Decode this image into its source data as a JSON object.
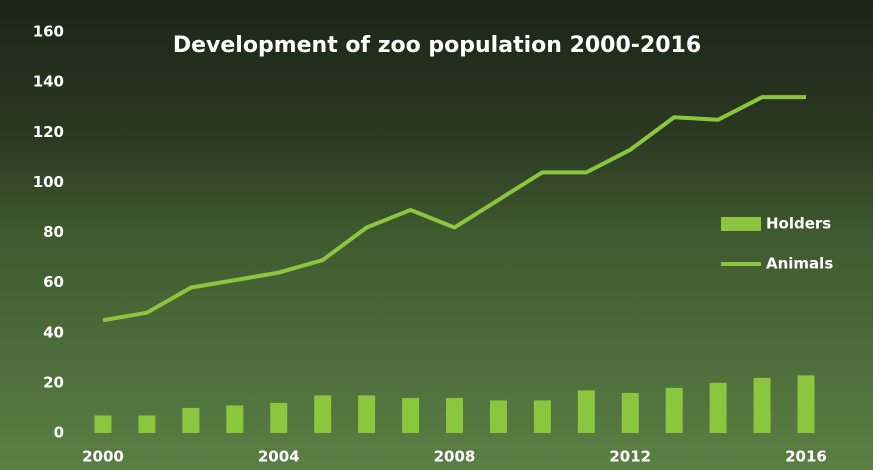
{
  "chart_data": {
    "type": "bar-line",
    "title": "Development of zoo population 2000-2016",
    "x": [
      2000,
      2001,
      2002,
      2003,
      2004,
      2005,
      2006,
      2007,
      2008,
      2009,
      2010,
      2011,
      2012,
      2013,
      2014,
      2015,
      2016
    ],
    "series": [
      {
        "name": "Holders",
        "type": "bar",
        "color": "#8cc63f",
        "values": [
          7,
          7,
          10,
          11,
          12,
          15,
          15,
          14,
          14,
          13,
          13,
          17,
          16,
          18,
          20,
          22,
          23
        ]
      },
      {
        "name": "Animals",
        "type": "line",
        "color": "#8cc63f",
        "values": [
          45,
          48,
          58,
          61,
          64,
          69,
          82,
          89,
          82,
          93,
          104,
          104,
          113,
          126,
          125,
          134,
          134
        ]
      }
    ],
    "xlim": [
      2000,
      2016
    ],
    "xticks": [
      2000,
      2004,
      2008,
      2012,
      2016
    ],
    "ylim": [
      0,
      160
    ],
    "yticks": [
      0,
      20,
      40,
      60,
      80,
      100,
      120,
      140,
      160
    ],
    "legend": "right"
  }
}
